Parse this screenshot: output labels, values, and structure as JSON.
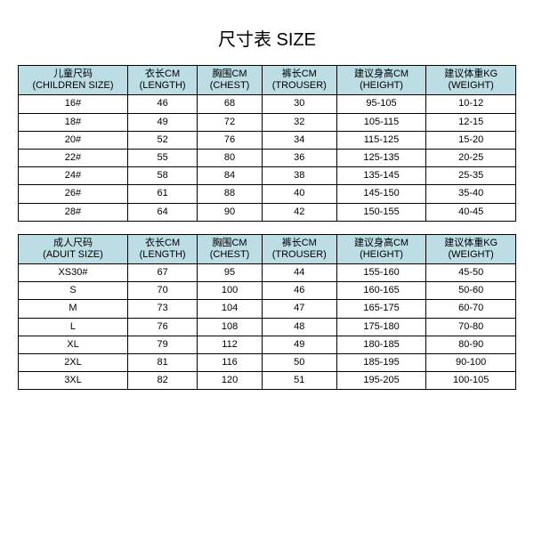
{
  "title": "尺寸表 SIZE",
  "colors": {
    "header_bg": "#bcdde3",
    "border": "#000000",
    "text": "#000000",
    "background": "#ffffff"
  },
  "children": {
    "columns": [
      {
        "top": "儿童尺码",
        "bot": "(CHILDREN SIZE)"
      },
      {
        "top": "衣长CM",
        "bot": "(LENGTH)"
      },
      {
        "top": "胸围CM",
        "bot": "(CHEST)"
      },
      {
        "top": "裤长CM",
        "bot": "(TROUSER)"
      },
      {
        "top": "建议身高CM",
        "bot": "(HEIGHT)"
      },
      {
        "top": "建议体重KG",
        "bot": "(WEIGHT)"
      }
    ],
    "rows": [
      [
        "16#",
        "46",
        "68",
        "30",
        "95-105",
        "10-12"
      ],
      [
        "18#",
        "49",
        "72",
        "32",
        "105-115",
        "12-15"
      ],
      [
        "20#",
        "52",
        "76",
        "34",
        "115-125",
        "15-20"
      ],
      [
        "22#",
        "55",
        "80",
        "36",
        "125-135",
        "20-25"
      ],
      [
        "24#",
        "58",
        "84",
        "38",
        "135-145",
        "25-35"
      ],
      [
        "26#",
        "61",
        "88",
        "40",
        "145-150",
        "35-40"
      ],
      [
        "28#",
        "64",
        "90",
        "42",
        "150-155",
        "40-45"
      ]
    ]
  },
  "adult": {
    "columns": [
      {
        "top": "成人尺码",
        "bot": "(ADUIT SIZE)"
      },
      {
        "top": "衣长CM",
        "bot": "(LENGTH)"
      },
      {
        "top": "胸围CM",
        "bot": "(CHEST)"
      },
      {
        "top": "裤长CM",
        "bot": "(TROUSER)"
      },
      {
        "top": "建议身高CM",
        "bot": "(HEIGHT)"
      },
      {
        "top": "建议体重KG",
        "bot": "(WEIGHT)"
      }
    ],
    "rows": [
      [
        "XS30#",
        "67",
        "95",
        "44",
        "155-160",
        "45-50"
      ],
      [
        "S",
        "70",
        "100",
        "46",
        "160-165",
        "50-60"
      ],
      [
        "M",
        "73",
        "104",
        "47",
        "165-175",
        "60-70"
      ],
      [
        "L",
        "76",
        "108",
        "48",
        "175-180",
        "70-80"
      ],
      [
        "XL",
        "79",
        "112",
        "49",
        "180-185",
        "80-90"
      ],
      [
        "2XL",
        "81",
        "116",
        "50",
        "185-195",
        "90-100"
      ],
      [
        "3XL",
        "82",
        "120",
        "51",
        "195-205",
        "100-105"
      ]
    ]
  }
}
